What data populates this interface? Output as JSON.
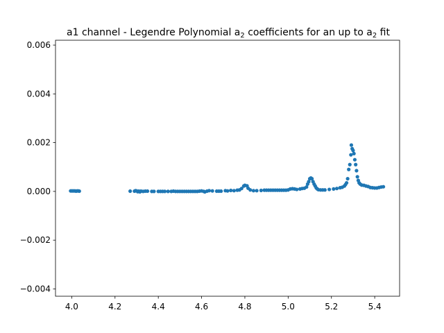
{
  "chart_data": {
    "type": "scatter",
    "title": "a1 channel - Legendre Polynomial a",
    "title_parts": [
      {
        "text": "a1 channel - Legendre Polynomial a",
        "sub": false
      },
      {
        "text": "2",
        "sub": true
      },
      {
        "text": " coefficients for an up to a",
        "sub": false
      },
      {
        "text": "2",
        "sub": true
      },
      {
        "text": " fit",
        "sub": false
      }
    ],
    "xlabel": "",
    "ylabel": "",
    "xlim": [
      3.925,
      5.515
    ],
    "ylim": [
      -0.0043,
      0.0062
    ],
    "grid": false,
    "marker_color": "#1f77b4",
    "x_ticks": [
      {
        "value": 4.0,
        "label": "4.0"
      },
      {
        "value": 4.2,
        "label": "4.2"
      },
      {
        "value": 4.4,
        "label": "4.4"
      },
      {
        "value": 4.6,
        "label": "4.6"
      },
      {
        "value": 4.8,
        "label": "4.8"
      },
      {
        "value": 5.0,
        "label": "5.0"
      },
      {
        "value": 5.2,
        "label": "5.2"
      },
      {
        "value": 5.4,
        "label": "5.4"
      }
    ],
    "y_ticks": [
      {
        "value": -0.004,
        "label": "−0.004"
      },
      {
        "value": -0.002,
        "label": "−0.002"
      },
      {
        "value": 0.0,
        "label": "0.000"
      },
      {
        "value": 0.002,
        "label": "0.002"
      },
      {
        "value": 0.004,
        "label": "0.004"
      },
      {
        "value": 0.006,
        "label": "0.006"
      }
    ],
    "points": [
      {
        "x": 3.995,
        "y": 2e-05
      },
      {
        "x": 4.0,
        "y": 2e-05
      },
      {
        "x": 4.005,
        "y": 2e-05
      },
      {
        "x": 4.01,
        "y": 2e-05
      },
      {
        "x": 4.015,
        "y": 2e-05
      },
      {
        "x": 4.02,
        "y": 1e-05
      },
      {
        "x": 4.025,
        "y": 2e-05
      },
      {
        "x": 4.03,
        "y": 2e-05
      },
      {
        "x": 4.035,
        "y": 1e-05
      },
      {
        "x": 4.27,
        "y": 1e-05
      },
      {
        "x": 4.29,
        "y": 1e-05
      },
      {
        "x": 4.295,
        "y": 3e-05
      },
      {
        "x": 4.3,
        "y": 2e-05
      },
      {
        "x": 4.305,
        "y": -1e-05
      },
      {
        "x": 4.31,
        "y": 1e-05
      },
      {
        "x": 4.315,
        "y": -2e-05
      },
      {
        "x": 4.32,
        "y": 1e-05
      },
      {
        "x": 4.33,
        "y": 0.0
      },
      {
        "x": 4.34,
        "y": 1e-05
      },
      {
        "x": 4.35,
        "y": 1e-05
      },
      {
        "x": 4.37,
        "y": 0.0
      },
      {
        "x": 4.38,
        "y": 0.0
      },
      {
        "x": 4.4,
        "y": 0.0
      },
      {
        "x": 4.41,
        "y": 0.0
      },
      {
        "x": 4.42,
        "y": 0.0
      },
      {
        "x": 4.43,
        "y": 0.0
      },
      {
        "x": 4.445,
        "y": 0.0
      },
      {
        "x": 4.46,
        "y": 0.0
      },
      {
        "x": 4.47,
        "y": 1e-05
      },
      {
        "x": 4.48,
        "y": 0.0
      },
      {
        "x": 4.49,
        "y": 0.0
      },
      {
        "x": 4.5,
        "y": 0.0
      },
      {
        "x": 4.51,
        "y": 0.0
      },
      {
        "x": 4.52,
        "y": 0.0
      },
      {
        "x": 4.53,
        "y": 0.0
      },
      {
        "x": 4.54,
        "y": 0.0
      },
      {
        "x": 4.55,
        "y": 0.0
      },
      {
        "x": 4.56,
        "y": 0.0
      },
      {
        "x": 4.57,
        "y": 0.0
      },
      {
        "x": 4.58,
        "y": 0.0
      },
      {
        "x": 4.59,
        "y": 1e-05
      },
      {
        "x": 4.6,
        "y": 2e-05
      },
      {
        "x": 4.61,
        "y": 0.0
      },
      {
        "x": 4.615,
        "y": -2e-05
      },
      {
        "x": 4.625,
        "y": 1e-05
      },
      {
        "x": 4.635,
        "y": 3e-05
      },
      {
        "x": 4.65,
        "y": 2e-05
      },
      {
        "x": 4.67,
        "y": 1e-05
      },
      {
        "x": 4.68,
        "y": 1e-05
      },
      {
        "x": 4.69,
        "y": 1e-05
      },
      {
        "x": 4.71,
        "y": 3e-05
      },
      {
        "x": 4.72,
        "y": 2e-05
      },
      {
        "x": 4.735,
        "y": 4e-05
      },
      {
        "x": 4.75,
        "y": 3e-05
      },
      {
        "x": 4.765,
        "y": 5e-05
      },
      {
        "x": 4.775,
        "y": 6e-05
      },
      {
        "x": 4.785,
        "y": 0.00012
      },
      {
        "x": 4.795,
        "y": 0.00022
      },
      {
        "x": 4.8,
        "y": 0.00025
      },
      {
        "x": 4.81,
        "y": 0.00023
      },
      {
        "x": 4.815,
        "y": 0.00013
      },
      {
        "x": 4.825,
        "y": 6e-05
      },
      {
        "x": 4.84,
        "y": 3e-05
      },
      {
        "x": 4.855,
        "y": 3e-05
      },
      {
        "x": 4.875,
        "y": 4e-05
      },
      {
        "x": 4.89,
        "y": 5e-05
      },
      {
        "x": 4.9,
        "y": 5e-05
      },
      {
        "x": 4.91,
        "y": 5e-05
      },
      {
        "x": 4.92,
        "y": 5e-05
      },
      {
        "x": 4.93,
        "y": 5e-05
      },
      {
        "x": 4.94,
        "y": 5e-05
      },
      {
        "x": 4.95,
        "y": 5e-05
      },
      {
        "x": 4.96,
        "y": 5e-05
      },
      {
        "x": 4.97,
        "y": 5e-05
      },
      {
        "x": 4.98,
        "y": 5e-05
      },
      {
        "x": 4.99,
        "y": 5e-05
      },
      {
        "x": 5.0,
        "y": 6e-05
      },
      {
        "x": 5.01,
        "y": 0.0001
      },
      {
        "x": 5.02,
        "y": 0.00011
      },
      {
        "x": 5.03,
        "y": 0.0001
      },
      {
        "x": 5.04,
        "y": 8e-05
      },
      {
        "x": 5.055,
        "y": 0.0001
      },
      {
        "x": 5.065,
        "y": 0.00012
      },
      {
        "x": 5.075,
        "y": 0.00013
      },
      {
        "x": 5.085,
        "y": 0.00018
      },
      {
        "x": 5.09,
        "y": 0.0003
      },
      {
        "x": 5.095,
        "y": 0.0004
      },
      {
        "x": 5.1,
        "y": 0.00052
      },
      {
        "x": 5.105,
        "y": 0.00055
      },
      {
        "x": 5.11,
        "y": 0.00052
      },
      {
        "x": 5.115,
        "y": 0.0004
      },
      {
        "x": 5.12,
        "y": 0.0003
      },
      {
        "x": 5.125,
        "y": 0.00022
      },
      {
        "x": 5.13,
        "y": 0.00014
      },
      {
        "x": 5.135,
        "y": 0.0001
      },
      {
        "x": 5.14,
        "y": 7e-05
      },
      {
        "x": 5.15,
        "y": 6e-05
      },
      {
        "x": 5.16,
        "y": 6e-05
      },
      {
        "x": 5.17,
        "y": 6e-05
      },
      {
        "x": 5.19,
        "y": 8e-05
      },
      {
        "x": 5.21,
        "y": 0.0001
      },
      {
        "x": 5.225,
        "y": 0.00012
      },
      {
        "x": 5.24,
        "y": 0.00015
      },
      {
        "x": 5.25,
        "y": 0.00017
      },
      {
        "x": 5.26,
        "y": 0.00022
      },
      {
        "x": 5.265,
        "y": 0.00028
      },
      {
        "x": 5.27,
        "y": 0.00035
      },
      {
        "x": 5.275,
        "y": 0.00052
      },
      {
        "x": 5.28,
        "y": 0.0009
      },
      {
        "x": 5.285,
        "y": 0.0011
      },
      {
        "x": 5.29,
        "y": 0.0015
      },
      {
        "x": 5.292,
        "y": 0.0019
      },
      {
        "x": 5.296,
        "y": 0.00175
      },
      {
        "x": 5.3,
        "y": 0.00168
      },
      {
        "x": 5.304,
        "y": 0.00155
      },
      {
        "x": 5.308,
        "y": 0.0013
      },
      {
        "x": 5.312,
        "y": 0.0011
      },
      {
        "x": 5.316,
        "y": 0.00085
      },
      {
        "x": 5.32,
        "y": 0.0006
      },
      {
        "x": 5.324,
        "y": 0.00045
      },
      {
        "x": 5.328,
        "y": 0.00035
      },
      {
        "x": 5.333,
        "y": 0.0003
      },
      {
        "x": 5.34,
        "y": 0.00026
      },
      {
        "x": 5.35,
        "y": 0.00025
      },
      {
        "x": 5.36,
        "y": 0.00022
      },
      {
        "x": 5.37,
        "y": 0.0002
      },
      {
        "x": 5.38,
        "y": 0.00016
      },
      {
        "x": 5.39,
        "y": 0.00015
      },
      {
        "x": 5.4,
        "y": 0.00014
      },
      {
        "x": 5.41,
        "y": 0.00014
      },
      {
        "x": 5.42,
        "y": 0.00016
      },
      {
        "x": 5.43,
        "y": 0.00018
      },
      {
        "x": 5.44,
        "y": 0.00019
      }
    ]
  }
}
